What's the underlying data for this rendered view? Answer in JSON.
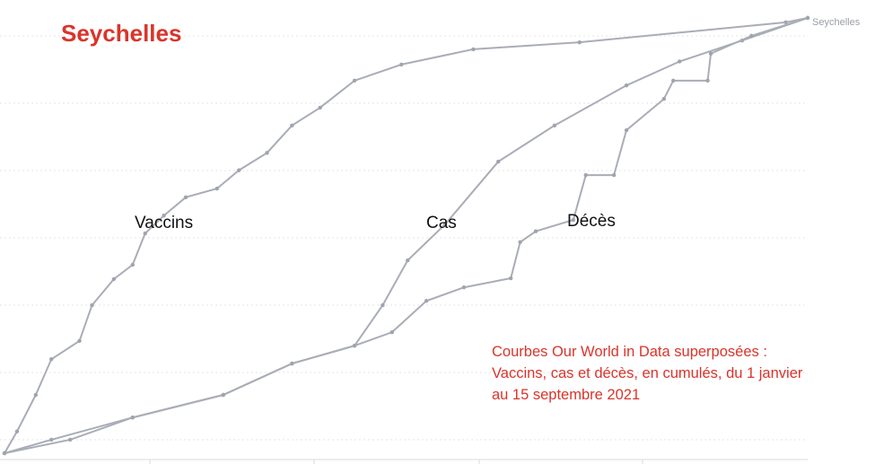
{
  "chart_data": {
    "type": "line",
    "title": "Seychelles",
    "x_range": [
      "2021-01-01",
      "2021-09-15"
    ],
    "y_range": [
      0,
      1
    ],
    "grid": true,
    "end_label": "Seychelles",
    "annotation": [
      "Courbes Our World in Data superposées :",
      "Vaccins, cas et décès, en cumulés, du 1 janvier",
      "au 15 septembre 2021"
    ],
    "line_color": "#a9adb6",
    "series": [
      {
        "name": "Vaccins",
        "x": [
          "2021-01-01",
          "2021-01-05",
          "2021-01-11",
          "2021-01-16",
          "2021-01-25",
          "2021-01-29",
          "2021-02-05",
          "2021-02-11",
          "2021-02-15",
          "2021-02-21",
          "2021-02-28",
          "2021-03-10",
          "2021-03-17",
          "2021-03-26",
          "2021-04-03",
          "2021-04-12",
          "2021-04-23",
          "2021-05-08",
          "2021-05-31",
          "2021-07-04",
          "2021-09-08",
          "2021-09-15"
        ],
        "y": [
          0,
          0.05,
          0.134,
          0.216,
          0.258,
          0.34,
          0.4,
          0.433,
          0.505,
          0.546,
          0.588,
          0.608,
          0.65,
          0.69,
          0.753,
          0.794,
          0.856,
          0.893,
          0.928,
          0.944,
          0.99,
          1
        ]
      },
      {
        "name": "Cas",
        "x": [
          "2021-01-01",
          "2021-01-16",
          "2021-02-11",
          "2021-03-12",
          "2021-04-03",
          "2021-04-23",
          "2021-05-02",
          "2021-05-10",
          "2021-05-22",
          "2021-06-08",
          "2021-06-26",
          "2021-07-19",
          "2021-08-05",
          "2021-08-25",
          "2021-09-15"
        ],
        "y": [
          0,
          0.031,
          0.082,
          0.134,
          0.206,
          0.247,
          0.34,
          0.443,
          0.526,
          0.67,
          0.753,
          0.845,
          0.9,
          0.948,
          1
        ]
      },
      {
        "name": "Décès",
        "x": [
          "2021-01-01",
          "2021-01-22",
          "2021-02-11",
          "2021-03-12",
          "2021-04-03",
          "2021-04-23",
          "2021-05-05",
          "2021-05-16",
          "2021-05-28",
          "2021-06-12",
          "2021-06-15",
          "2021-06-20",
          "2021-07-02",
          "2021-07-06",
          "2021-07-15",
          "2021-07-19",
          "2021-07-31",
          "2021-08-03",
          "2021-08-14",
          "2021-08-15",
          "2021-08-28",
          "2021-09-15"
        ],
        "y": [
          0,
          0.031,
          0.082,
          0.134,
          0.206,
          0.247,
          0.278,
          0.35,
          0.381,
          0.402,
          0.485,
          0.51,
          0.536,
          0.639,
          0.639,
          0.742,
          0.814,
          0.856,
          0.856,
          0.918,
          0.959,
          1
        ]
      }
    ]
  }
}
